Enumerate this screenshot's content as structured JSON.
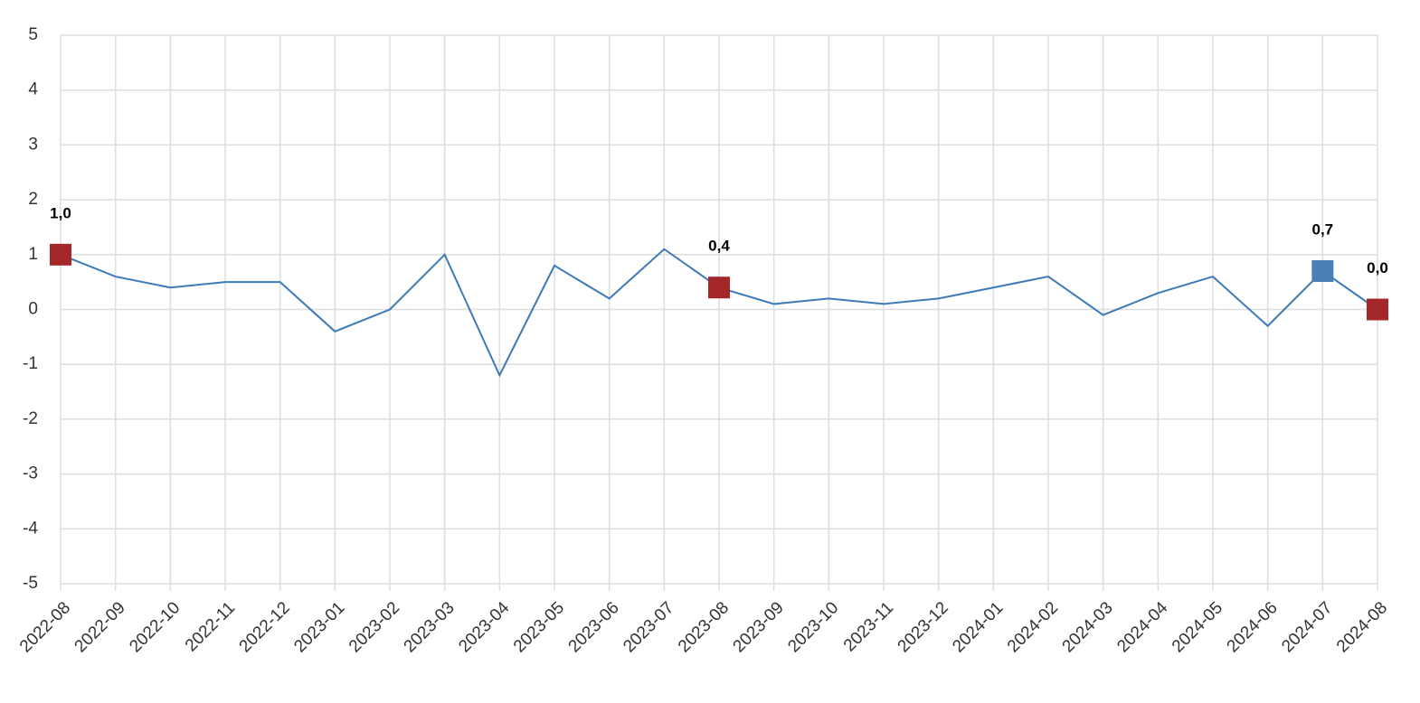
{
  "chart_data": {
    "type": "line",
    "categories": [
      "2022-08",
      "2022-09",
      "2022-10",
      "2022-11",
      "2022-12",
      "2023-01",
      "2023-02",
      "2023-03",
      "2023-04",
      "2023-05",
      "2023-06",
      "2023-07",
      "2023-08",
      "2023-09",
      "2023-10",
      "2023-11",
      "2023-12",
      "2024-01",
      "2024-02",
      "2024-03",
      "2024-04",
      "2024-05",
      "2024-06",
      "2024-07",
      "2024-08"
    ],
    "values": [
      1.0,
      0.6,
      0.4,
      0.5,
      0.5,
      -0.4,
      0.0,
      1.0,
      -1.2,
      0.8,
      0.2,
      1.1,
      0.4,
      0.1,
      0.2,
      0.1,
      0.2,
      0.4,
      0.6,
      -0.1,
      0.3,
      0.6,
      -0.3,
      0.7,
      0.0
    ],
    "value_labels": [
      "1,0",
      null,
      null,
      null,
      null,
      null,
      null,
      null,
      null,
      null,
      null,
      null,
      "0,4",
      null,
      null,
      null,
      null,
      null,
      null,
      null,
      null,
      null,
      null,
      "0,7",
      "0,0"
    ],
    "marker_colors": [
      "#a4282a",
      null,
      null,
      null,
      null,
      null,
      null,
      null,
      null,
      null,
      null,
      null,
      "#a4282a",
      null,
      null,
      null,
      null,
      null,
      null,
      null,
      null,
      null,
      null,
      "#4a7fb8",
      "#a4282a"
    ],
    "color": "#3d7ab8",
    "ylim": [
      -5,
      5
    ],
    "yticks": [
      -5,
      -4,
      -3,
      -2,
      -1,
      0,
      1,
      2,
      3,
      4,
      5
    ],
    "grid": true
  }
}
